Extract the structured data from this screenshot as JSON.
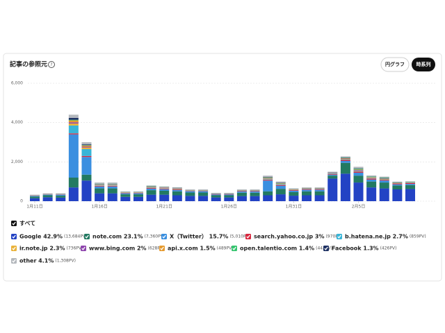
{
  "header": {
    "title": "記事の参照元",
    "buttons": [
      "円グラフ",
      "時系列"
    ]
  },
  "chart_data": {
    "type": "stacked_bar",
    "categories": [
      "1月11日",
      null,
      null,
      null,
      null,
      "1月16日",
      null,
      null,
      null,
      null,
      "1月21日",
      null,
      null,
      null,
      null,
      "1月26日",
      null,
      null,
      null,
      null,
      "1月31日",
      null,
      null,
      null,
      null,
      "2月5日",
      null,
      null,
      null,
      null
    ],
    "ylim": [
      0,
      6000
    ],
    "yticks": [
      0,
      {
        "value": 2000,
        "label": "2,000"
      },
      {
        "value": 4000,
        "label": "4,000"
      },
      {
        "value": 6000,
        "label": "6,000"
      }
    ],
    "grid": true,
    "all_label": "すべて",
    "series": [
      {
        "name": "Google 42.9%",
        "pv": "(13,684PV)",
        "color": "#2343c4",
        "values": [
          150,
          200,
          180,
          700,
          1050,
          400,
          400,
          220,
          220,
          330,
          330,
          300,
          270,
          270,
          190,
          190,
          260,
          260,
          300,
          350,
          280,
          300,
          300,
          1150,
          1400,
          950,
          700,
          650,
          600,
          620
        ]
      },
      {
        "name": "note.com 23.1%",
        "pv": "(7,360PV)",
        "color": "#237a62",
        "values": [
          80,
          100,
          100,
          500,
          300,
          250,
          250,
          130,
          130,
          230,
          200,
          200,
          170,
          170,
          110,
          110,
          170,
          170,
          200,
          280,
          180,
          200,
          200,
          150,
          550,
          350,
          300,
          300,
          200,
          200
        ]
      },
      {
        "name": "X（Twitter） 15.7%",
        "pv": "(5,010PV)",
        "color": "#3a8fe0",
        "values": [
          30,
          30,
          40,
          2200,
          900,
          100,
          100,
          50,
          50,
          80,
          80,
          70,
          60,
          60,
          40,
          40,
          60,
          60,
          550,
          150,
          70,
          80,
          80,
          50,
          100,
          150,
          100,
          100,
          60,
          60
        ]
      },
      {
        "name": "search.yahoo.co.jp 3%",
        "pv": "(970PV)",
        "color": "#d7263d",
        "values": [
          10,
          10,
          10,
          50,
          50,
          30,
          30,
          20,
          20,
          30,
          30,
          30,
          20,
          20,
          20,
          20,
          30,
          30,
          40,
          40,
          30,
          30,
          30,
          30,
          50,
          60,
          50,
          40,
          40,
          40
        ]
      },
      {
        "name": "b.hatena.ne.jp 2.7%",
        "pv": "(859PV)",
        "color": "#38b5d8",
        "values": [
          10,
          10,
          10,
          400,
          350,
          20,
          20,
          10,
          10,
          20,
          20,
          20,
          10,
          10,
          10,
          10,
          10,
          10,
          30,
          30,
          10,
          10,
          10,
          20,
          30,
          30,
          20,
          20,
          10,
          10
        ]
      },
      {
        "name": "ir.note.jp 2.3%",
        "pv": "(736PV)",
        "color": "#e9b23a",
        "values": [
          5,
          5,
          5,
          100,
          80,
          20,
          20,
          10,
          10,
          20,
          20,
          20,
          10,
          10,
          10,
          10,
          10,
          10,
          20,
          20,
          10,
          10,
          10,
          10,
          20,
          20,
          20,
          20,
          10,
          10
        ]
      },
      {
        "name": "www.bing.com 2%",
        "pv": "(628PV)",
        "color": "#8e44ad",
        "values": [
          10,
          10,
          10,
          60,
          40,
          20,
          20,
          10,
          10,
          20,
          20,
          20,
          10,
          10,
          10,
          10,
          10,
          10,
          20,
          20,
          10,
          10,
          10,
          20,
          20,
          30,
          20,
          20,
          10,
          10
        ]
      },
      {
        "name": "api.x.com 1.5%",
        "pv": "(489PV)",
        "color": "#e59a2f",
        "values": [
          5,
          5,
          5,
          100,
          60,
          10,
          10,
          5,
          5,
          10,
          10,
          10,
          5,
          5,
          5,
          5,
          5,
          5,
          20,
          10,
          10,
          10,
          10,
          10,
          20,
          20,
          10,
          10,
          10,
          10
        ]
      },
      {
        "name": "open.talentio.com 1.4%",
        "pv": "(443PV)",
        "color": "#34c46e",
        "values": [
          5,
          5,
          5,
          30,
          20,
          20,
          20,
          10,
          10,
          20,
          10,
          10,
          10,
          10,
          5,
          5,
          10,
          10,
          20,
          20,
          10,
          10,
          10,
          10,
          20,
          40,
          30,
          30,
          20,
          20
        ]
      },
      {
        "name": "Facebook 1.3%",
        "pv": "(426PV)",
        "color": "#1e3163",
        "values": [
          5,
          5,
          5,
          100,
          40,
          10,
          10,
          5,
          5,
          10,
          10,
          10,
          5,
          5,
          5,
          5,
          5,
          5,
          20,
          20,
          10,
          10,
          10,
          10,
          20,
          20,
          10,
          10,
          10,
          10
        ]
      },
      {
        "name": "other 4.1%",
        "pv": "(1,308PV)",
        "color": "#b4b8bd",
        "values": [
          20,
          20,
          30,
          160,
          110,
          70,
          70,
          30,
          30,
          30,
          20,
          10,
          30,
          30,
          15,
          15,
          30,
          30,
          80,
          60,
          30,
          30,
          30,
          40,
          50,
          80,
          50,
          50,
          20,
          20
        ]
      }
    ]
  }
}
